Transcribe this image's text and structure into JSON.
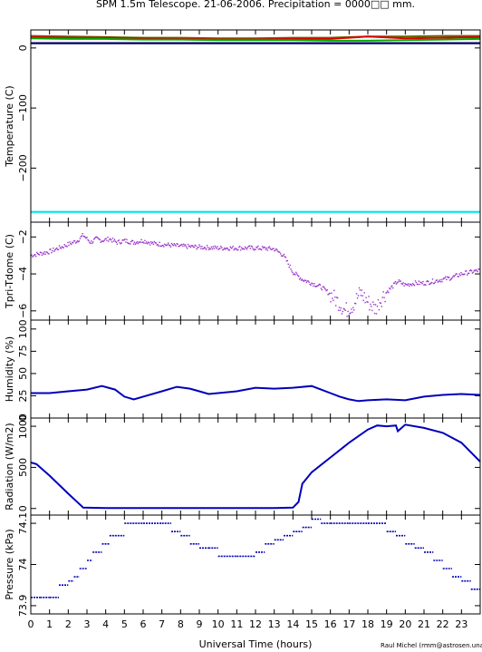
{
  "title": "SPM 1.5m Telescope. 21-06-2006. Precipitation = 0000□□ mm.",
  "xlabel": "Universal Time (hours)",
  "credit": "Raul Michel (rmm@astrosen.unam.mx)",
  "xticks": [
    0,
    1,
    2,
    3,
    4,
    5,
    6,
    7,
    8,
    9,
    10,
    11,
    12,
    13,
    14,
    15,
    16,
    17,
    18,
    19,
    20,
    21,
    22,
    23
  ],
  "colors": {
    "purple": "#9933cc",
    "blue": "#0000bb",
    "cyan": "#00e5e5",
    "red": "#dd0000",
    "green": "#00aa00",
    "olive": "#666600",
    "darkblue": "#000066"
  },
  "chart_data": [
    {
      "type": "line",
      "ylabel": "Temperature (C)",
      "xlim": [
        0,
        24
      ],
      "ylim": [
        -290,
        30
      ],
      "yticks": [
        0,
        -100,
        -200
      ],
      "yticklabels": [
        "0",
        "−100",
        "−200"
      ],
      "series": [
        {
          "color": "#666600",
          "x": [
            0,
            2,
            4,
            6,
            8,
            10,
            12,
            14,
            16,
            18,
            20,
            22,
            24
          ],
          "y": [
            20,
            19,
            18,
            17,
            17,
            16,
            16,
            17,
            17,
            19,
            19,
            20,
            20
          ]
        },
        {
          "color": "#dd0000",
          "x": [
            0,
            2,
            4,
            6,
            8,
            10,
            12,
            14,
            16,
            17,
            18,
            20,
            22,
            24
          ],
          "y": [
            18,
            17,
            17,
            16,
            15,
            14,
            14,
            15,
            15,
            17,
            19,
            16,
            17,
            18
          ]
        },
        {
          "color": "#00aa00",
          "x": [
            0,
            2,
            4,
            6,
            8,
            10,
            12,
            14,
            16,
            18,
            20,
            22,
            24
          ],
          "y": [
            16,
            15,
            15,
            14,
            14,
            13,
            13,
            13,
            12,
            12,
            13,
            14,
            15
          ]
        },
        {
          "color": "#000066",
          "x": [
            0,
            24
          ],
          "y": [
            8,
            8
          ]
        },
        {
          "color": "#00e5e5",
          "x": [
            0,
            24
          ],
          "y": [
            -273,
            -273
          ]
        }
      ]
    },
    {
      "type": "scatter",
      "ylabel": "Tpri-Tdome (C)",
      "xlim": [
        0,
        24
      ],
      "ylim": [
        -6.5,
        -1.2
      ],
      "yticks": [
        -2,
        -4,
        -6
      ],
      "yticklabels": [
        "−2",
        "−4",
        "−6"
      ],
      "series": [
        {
          "color": "#9933cc",
          "x": [
            0,
            0.5,
            1,
            1.5,
            2,
            2.5,
            2.8,
            3.2,
            3.5,
            3.8,
            4.2,
            4.6,
            5,
            5.5,
            6,
            6.5,
            7,
            7.5,
            8,
            9,
            10,
            11,
            12,
            13,
            13.5,
            14,
            14.5,
            15,
            15.5,
            16,
            16.5,
            16.8,
            17.2,
            17.6,
            18,
            18.4,
            18.8,
            19.2,
            19.6,
            20,
            20.5,
            21,
            21.5,
            22,
            22.5,
            23,
            23.5,
            24
          ],
          "y": [
            -3.0,
            -2.9,
            -2.8,
            -2.6,
            -2.4,
            -2.2,
            -1.9,
            -2.3,
            -2.1,
            -2.2,
            -2.1,
            -2.3,
            -2.2,
            -2.3,
            -2.2,
            -2.35,
            -2.4,
            -2.45,
            -2.5,
            -2.55,
            -2.6,
            -2.6,
            -2.6,
            -2.65,
            -3.0,
            -3.9,
            -4.3,
            -4.5,
            -4.7,
            -5.1,
            -5.6,
            -6.0,
            -5.7,
            -5.0,
            -5.5,
            -5.9,
            -5.2,
            -4.8,
            -4.4,
            -4.6,
            -4.5,
            -4.5,
            -4.4,
            -4.3,
            -4.2,
            -4.0,
            -3.9,
            -3.8
          ]
        }
      ]
    },
    {
      "type": "line",
      "ylabel": "Humidity (%)",
      "xlim": [
        0,
        24
      ],
      "ylim": [
        0,
        110
      ],
      "yticks": [
        0,
        25,
        50,
        75,
        100
      ],
      "yticklabels": [
        "0",
        "25",
        "50",
        "75",
        "100"
      ],
      "series": [
        {
          "color": "#0000bb",
          "x": [
            0,
            1,
            2,
            3,
            3.8,
            4.5,
            5,
            5.5,
            6,
            7,
            7.8,
            8.5,
            9,
            9.5,
            10,
            11,
            12,
            13,
            14,
            15,
            15.5,
            16,
            16.5,
            17,
            17.5,
            18,
            19,
            20,
            21,
            22,
            23,
            24
          ],
          "y": [
            28,
            28,
            30,
            32,
            36,
            32,
            24,
            21,
            24,
            30,
            35,
            33,
            30,
            27,
            28,
            30,
            34,
            33,
            34,
            36,
            32,
            28,
            24,
            21,
            19,
            20,
            21,
            20,
            24,
            26,
            27,
            26
          ]
        }
      ]
    },
    {
      "type": "line",
      "ylabel": "Radiation (W/m2)",
      "xlim": [
        0,
        24
      ],
      "ylim": [
        -80,
        1100
      ],
      "yticks": [
        0,
        500,
        1000
      ],
      "yticklabels": [
        "0",
        "500",
        "1000"
      ],
      "series": [
        {
          "color": "#0000bb",
          "x": [
            0,
            0.3,
            1,
            2,
            2.8,
            4,
            8,
            12,
            13,
            14,
            14.3,
            14.5,
            15,
            16,
            17,
            18,
            18.5,
            19,
            19.5,
            19.6,
            20,
            21,
            22,
            23,
            24
          ],
          "y": [
            560,
            540,
            400,
            180,
            10,
            5,
            5,
            5,
            5,
            10,
            80,
            300,
            440,
            620,
            800,
            960,
            1010,
            1000,
            1010,
            940,
            1020,
            980,
            920,
            800,
            570
          ]
        }
      ]
    },
    {
      "type": "scatter",
      "ylabel": "Pressure (kPa)",
      "xlim": [
        0,
        24
      ],
      "ylim": [
        73.88,
        74.12
      ],
      "yticks": [
        73.9,
        74,
        74.1
      ],
      "yticklabels": [
        "73.9",
        "74",
        "74.1"
      ],
      "series": [
        {
          "color": "#0000bb",
          "x": [
            0,
            0.5,
            1,
            1.5,
            2,
            2.3,
            2.6,
            3,
            3.3,
            3.8,
            4.2,
            5,
            6,
            7,
            7.5,
            8,
            8.5,
            9,
            9.5,
            10,
            11,
            12,
            12.5,
            13,
            13.5,
            14,
            14.5,
            15,
            15.5,
            16,
            17,
            18,
            19,
            19.5,
            20,
            20.5,
            21,
            21.5,
            22,
            22.5,
            23,
            23.5,
            24
          ],
          "y": [
            73.92,
            73.92,
            73.92,
            73.95,
            73.96,
            73.97,
            73.99,
            74.01,
            74.03,
            74.05,
            74.07,
            74.1,
            74.1,
            74.1,
            74.08,
            74.07,
            74.05,
            74.04,
            74.04,
            74.02,
            74.02,
            74.03,
            74.05,
            74.06,
            74.07,
            74.08,
            74.09,
            74.11,
            74.1,
            74.1,
            74.1,
            74.1,
            74.08,
            74.07,
            74.05,
            74.04,
            74.03,
            74.01,
            73.99,
            73.97,
            73.96,
            73.94,
            73.92
          ]
        }
      ]
    }
  ]
}
